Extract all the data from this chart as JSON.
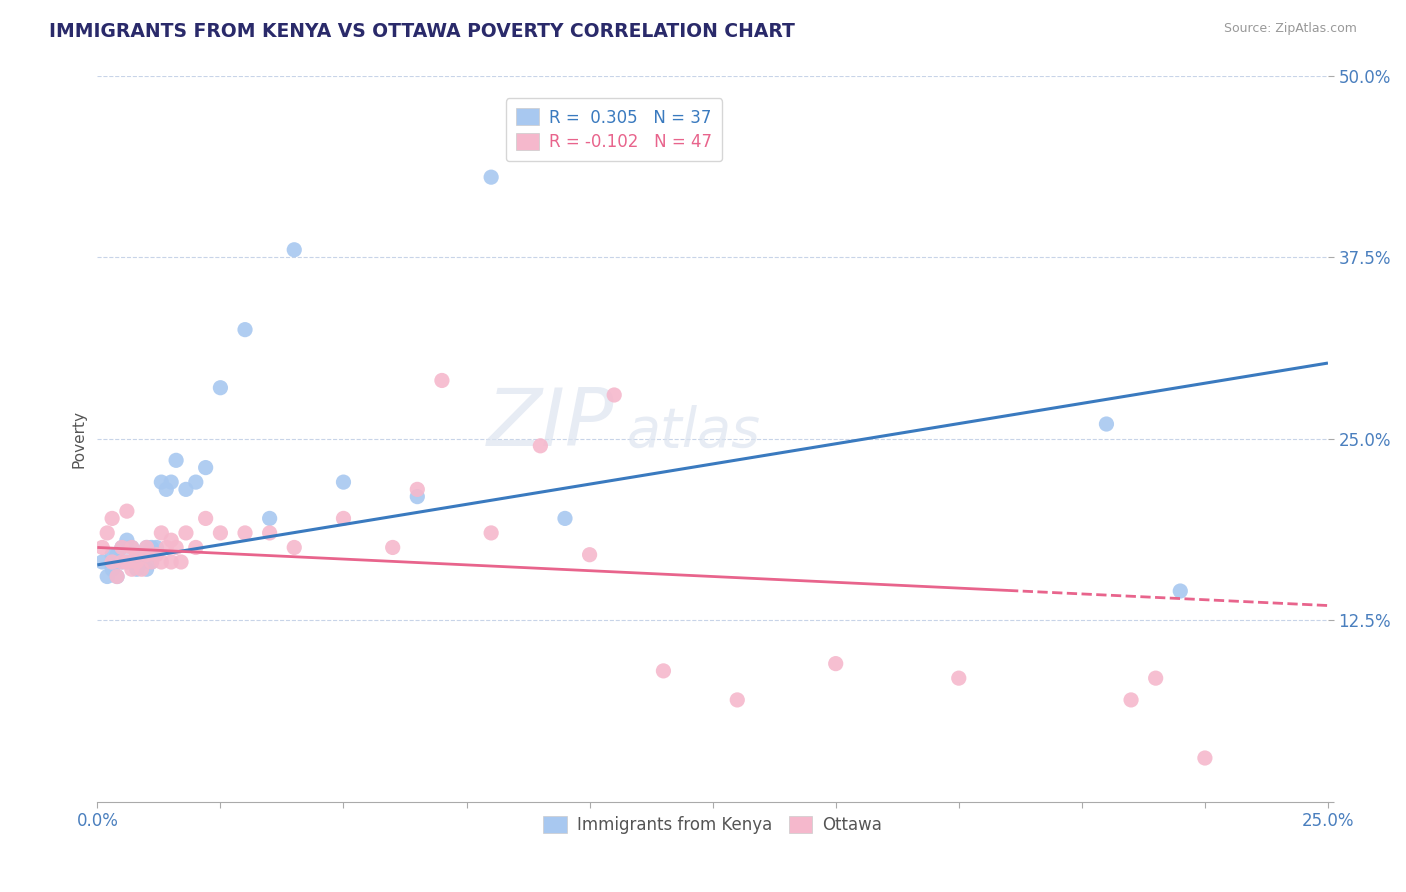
{
  "title": "IMMIGRANTS FROM KENYA VS OTTAWA POVERTY CORRELATION CHART",
  "source_text": "Source: ZipAtlas.com",
  "ylabel": "Poverty",
  "xlim": [
    0.0,
    0.25
  ],
  "ylim": [
    0.0,
    0.5
  ],
  "xticks": [
    0.0,
    0.025,
    0.05,
    0.075,
    0.1,
    0.125,
    0.15,
    0.175,
    0.2,
    0.225,
    0.25
  ],
  "xticklabels": [
    "0.0%",
    "",
    "",
    "",
    "",
    "",
    "",
    "",
    "",
    "",
    "25.0%"
  ],
  "yticks": [
    0.0,
    0.125,
    0.25,
    0.375,
    0.5
  ],
  "yticklabels": [
    "",
    "12.5%",
    "25.0%",
    "37.5%",
    "50.0%"
  ],
  "blue_R": "0.305",
  "blue_N": "37",
  "pink_R": "-0.102",
  "pink_N": "47",
  "blue_color": "#a8c8f0",
  "pink_color": "#f5b8cc",
  "blue_line_color": "#3a7abf",
  "pink_line_color": "#e8648c",
  "legend_blue_label": "Immigrants from Kenya",
  "legend_pink_label": "Ottawa",
  "background_color": "#ffffff",
  "grid_color": "#c8d4e8",
  "title_color": "#2a2a6a",
  "axis_label_color": "#4a7fbe",
  "label_text_color": "#333333",
  "blue_x": [
    0.001,
    0.002,
    0.003,
    0.003,
    0.004,
    0.004,
    0.005,
    0.005,
    0.006,
    0.006,
    0.007,
    0.007,
    0.008,
    0.008,
    0.009,
    0.01,
    0.01,
    0.011,
    0.011,
    0.012,
    0.013,
    0.014,
    0.015,
    0.016,
    0.018,
    0.02,
    0.022,
    0.025,
    0.03,
    0.035,
    0.04,
    0.05,
    0.065,
    0.08,
    0.095,
    0.205,
    0.22
  ],
  "blue_y": [
    0.165,
    0.155,
    0.16,
    0.17,
    0.155,
    0.17,
    0.165,
    0.175,
    0.165,
    0.18,
    0.165,
    0.175,
    0.16,
    0.17,
    0.165,
    0.16,
    0.175,
    0.165,
    0.175,
    0.175,
    0.22,
    0.215,
    0.22,
    0.235,
    0.215,
    0.22,
    0.23,
    0.285,
    0.325,
    0.195,
    0.38,
    0.22,
    0.21,
    0.43,
    0.195,
    0.26,
    0.145
  ],
  "pink_x": [
    0.001,
    0.002,
    0.003,
    0.003,
    0.004,
    0.005,
    0.005,
    0.006,
    0.006,
    0.007,
    0.007,
    0.008,
    0.008,
    0.009,
    0.01,
    0.01,
    0.011,
    0.012,
    0.013,
    0.013,
    0.014,
    0.015,
    0.015,
    0.016,
    0.017,
    0.018,
    0.02,
    0.022,
    0.025,
    0.03,
    0.035,
    0.04,
    0.05,
    0.06,
    0.065,
    0.07,
    0.08,
    0.09,
    0.1,
    0.105,
    0.115,
    0.13,
    0.15,
    0.175,
    0.21,
    0.215,
    0.225
  ],
  "pink_y": [
    0.175,
    0.185,
    0.165,
    0.195,
    0.155,
    0.165,
    0.175,
    0.165,
    0.2,
    0.16,
    0.175,
    0.17,
    0.165,
    0.16,
    0.17,
    0.175,
    0.165,
    0.17,
    0.165,
    0.185,
    0.175,
    0.165,
    0.18,
    0.175,
    0.165,
    0.185,
    0.175,
    0.195,
    0.185,
    0.185,
    0.185,
    0.175,
    0.195,
    0.175,
    0.215,
    0.29,
    0.185,
    0.245,
    0.17,
    0.28,
    0.09,
    0.07,
    0.095,
    0.085,
    0.07,
    0.085,
    0.03
  ]
}
